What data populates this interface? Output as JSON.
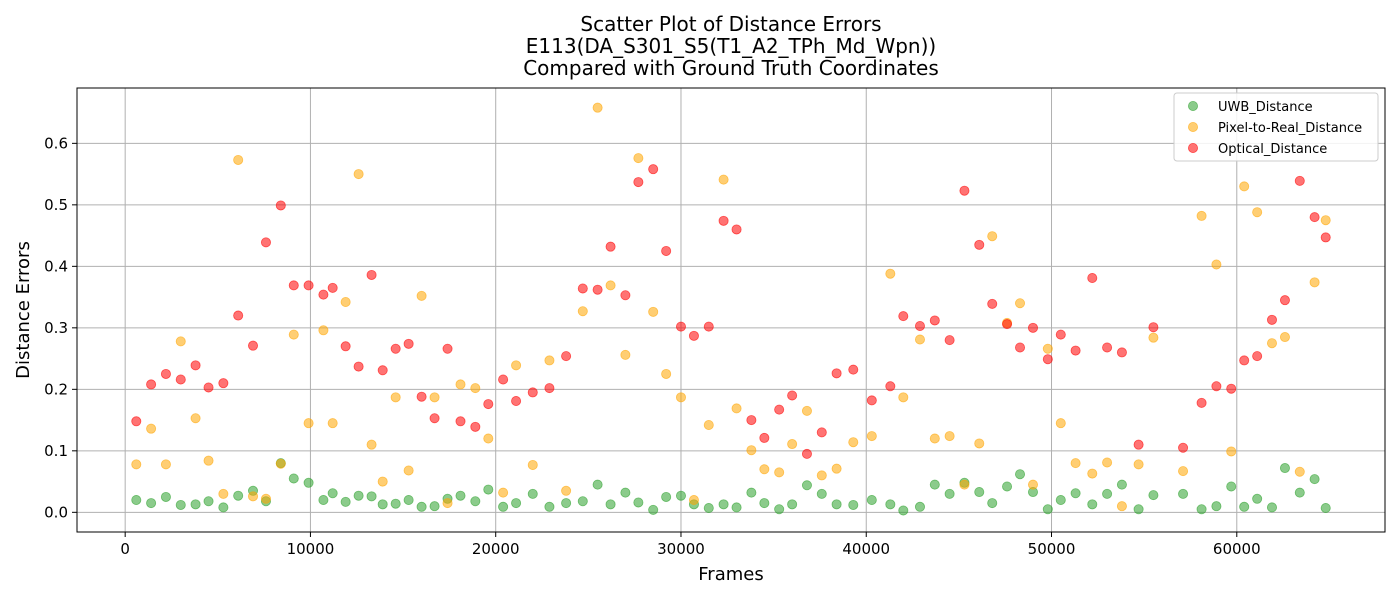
{
  "chart_data": {
    "type": "scatter",
    "title_lines": [
      "Scatter Plot of Distance Errors",
      "E113(DA_S301_S5(T1_A2_TPh_Md_Wpn))",
      "Compared with Ground Truth Coordinates"
    ],
    "xlabel": "Frames",
    "ylabel": "Distance Errors",
    "xlim": [
      -2600,
      68000
    ],
    "ylim": [
      -0.032,
      0.69
    ],
    "xticks": [
      0,
      10000,
      20000,
      30000,
      40000,
      50000,
      60000
    ],
    "yticks": [
      0.0,
      0.1,
      0.2,
      0.3,
      0.4,
      0.5,
      0.6
    ],
    "xtick_labels": [
      "0",
      "10000",
      "20000",
      "30000",
      "40000",
      "50000",
      "60000"
    ],
    "ytick_labels": [
      "0.0",
      "0.1",
      "0.2",
      "0.3",
      "0.4",
      "0.5",
      "0.6"
    ],
    "grid": true,
    "legend_position": "top-right",
    "x": [
      600,
      1400,
      2200,
      3000,
      3800,
      4500,
      5300,
      6100,
      6900,
      7600,
      8400,
      9100,
      9900,
      10700,
      11200,
      11900,
      12600,
      13300,
      13900,
      14600,
      15300,
      16000,
      16700,
      17400,
      18100,
      18900,
      19600,
      20400,
      21100,
      22000,
      22900,
      23800,
      24700,
      25500,
      26200,
      27000,
      27700,
      28500,
      29200,
      30000,
      30700,
      31500,
      32300,
      33000,
      33800,
      34500,
      35300,
      36000,
      36800,
      37600,
      38400,
      39300,
      40300,
      41300,
      42000,
      42900,
      43700,
      44500,
      45300,
      46100,
      46800,
      47600,
      48300,
      49000,
      49800,
      50500,
      51300,
      52200,
      53000,
      53800,
      54700,
      55500,
      57100,
      58100,
      58900,
      59700,
      60400,
      61100,
      61900,
      62600,
      63400,
      64200,
      64800
    ],
    "series": [
      {
        "name": "UWB_Distance",
        "color": "#2ca02c",
        "values": [
          0.02,
          0.015,
          0.025,
          0.012,
          0.013,
          0.018,
          0.008,
          0.027,
          0.035,
          0.018,
          0.08,
          0.055,
          0.048,
          0.02,
          0.031,
          0.017,
          0.027,
          0.026,
          0.013,
          0.014,
          0.02,
          0.009,
          0.01,
          0.022,
          0.027,
          0.018,
          0.037,
          0.009,
          0.015,
          0.03,
          0.009,
          0.015,
          0.018,
          0.045,
          0.013,
          0.032,
          0.016,
          0.004,
          0.025,
          0.027,
          0.013,
          0.007,
          0.013,
          0.008,
          0.032,
          0.015,
          0.005,
          0.013,
          0.044,
          0.03,
          0.013,
          0.012,
          0.02,
          0.013,
          0.003,
          0.009,
          0.045,
          0.03,
          0.048,
          0.033,
          0.015,
          0.042,
          0.062,
          0.033,
          0.005,
          0.02,
          0.031,
          0.013,
          0.03,
          0.045,
          0.005,
          0.028,
          0.03,
          0.005,
          0.01,
          0.042,
          0.009,
          0.022,
          0.008,
          0.072,
          0.032,
          0.054,
          0.007
        ]
      },
      {
        "name": "Pixel-to-Real_Distance",
        "color": "#ffa500",
        "values": [
          0.078,
          0.136,
          0.078,
          0.278,
          0.153,
          0.084,
          0.03,
          0.573,
          0.026,
          0.022,
          0.079,
          0.289,
          0.145,
          0.296,
          0.145,
          0.342,
          0.55,
          0.11,
          0.05,
          0.187,
          0.068,
          0.352,
          0.187,
          0.015,
          0.208,
          0.202,
          0.12,
          0.032,
          0.239,
          0.077,
          0.247,
          0.035,
          0.327,
          0.658,
          0.369,
          0.256,
          0.576,
          0.326,
          0.225,
          0.187,
          0.02,
          0.142,
          0.541,
          0.169,
          0.101,
          0.07,
          0.065,
          0.111,
          0.165,
          0.06,
          0.071,
          0.114,
          0.124,
          0.388,
          0.187,
          0.281,
          0.12,
          0.124,
          0.045,
          0.112,
          0.449,
          0.308,
          0.34,
          0.045,
          0.266,
          0.145,
          0.08,
          0.063,
          0.081,
          0.01,
          0.078,
          0.284,
          0.067,
          0.482,
          0.403,
          0.099,
          0.53,
          0.488,
          0.275,
          0.285,
          0.066,
          0.374,
          0.475
        ]
      },
      {
        "name": "Optical_Distance",
        "color": "#ff0000",
        "values": [
          0.148,
          0.208,
          0.225,
          0.216,
          0.239,
          0.203,
          0.21,
          0.32,
          0.271,
          0.439,
          0.499,
          0.369,
          0.369,
          0.354,
          0.365,
          0.27,
          0.237,
          0.386,
          0.231,
          0.266,
          0.274,
          0.188,
          0.153,
          0.266,
          0.148,
          0.139,
          0.176,
          0.216,
          0.181,
          0.195,
          0.202,
          0.254,
          0.364,
          0.362,
          0.432,
          0.353,
          0.537,
          0.558,
          0.425,
          0.302,
          0.287,
          0.302,
          0.474,
          0.46,
          0.15,
          0.121,
          0.167,
          0.19,
          0.095,
          0.13,
          0.226,
          0.232,
          0.182,
          0.205,
          0.319,
          0.303,
          0.312,
          0.28,
          0.523,
          0.435,
          0.339,
          0.306,
          0.268,
          0.3,
          0.249,
          0.289,
          0.263,
          0.381,
          0.268,
          0.26,
          0.11,
          0.301,
          0.105,
          0.178,
          0.205,
          0.201,
          0.247,
          0.254,
          0.313,
          0.345,
          0.539,
          0.48,
          0.447
        ]
      }
    ]
  }
}
